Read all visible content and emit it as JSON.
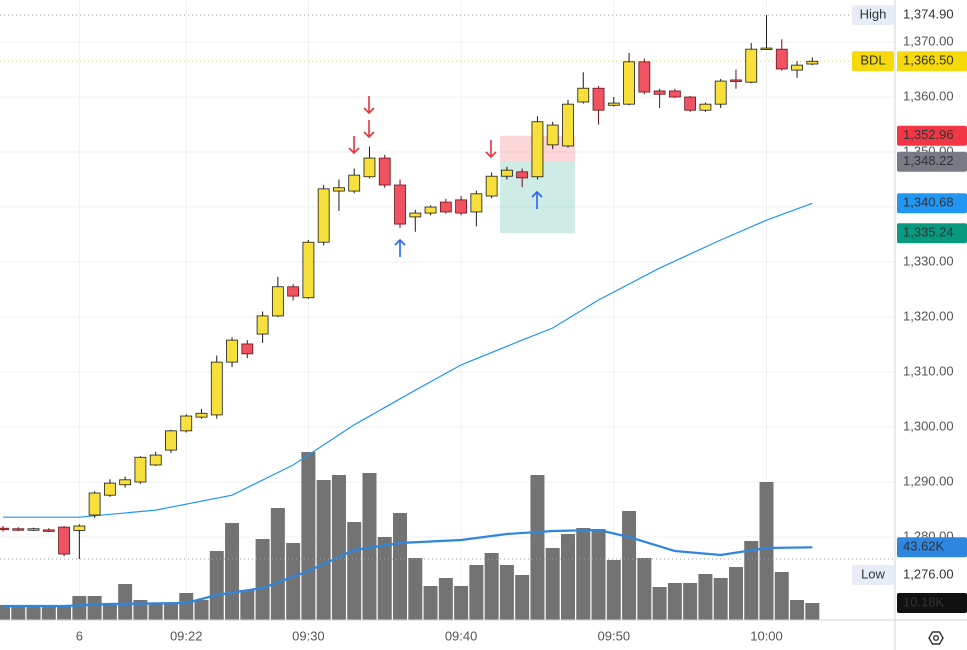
{
  "chart_data": {
    "type": "candlestick",
    "categories": [
      null,
      null,
      null,
      null,
      null,
      "6",
      null,
      null,
      null,
      null,
      null,
      null,
      "09:22",
      null,
      null,
      null,
      null,
      null,
      null,
      null,
      "09:30",
      null,
      null,
      null,
      null,
      null,
      null,
      null,
      null,
      null,
      "09:40",
      null,
      null,
      null,
      null,
      null,
      null,
      null,
      null,
      null,
      "09:50",
      null,
      null,
      null,
      null,
      null,
      null,
      null,
      null,
      null,
      "10:00",
      null,
      null,
      null
    ],
    "open": [
      1281.6,
      1281.5,
      1281.3,
      1281.3,
      1281.8,
      1281.2,
      1284.0,
      1287.6,
      1289.5,
      1290.0,
      1293.1,
      1295.8,
      1299.3,
      1301.8,
      1302.2,
      1311.8,
      1315.1,
      1316.9,
      1320.2,
      1325.5,
      1323.5,
      1333.6,
      1342.9,
      1342.9,
      1345.5,
      1348.9,
      1344.0,
      1338.2,
      1338.9,
      1340.9,
      1341.3,
      1339.1,
      1342.0,
      1345.6,
      1346.4,
      1345.5,
      1351.3,
      1351.1,
      1359.1,
      1361.6,
      1358.5,
      1358.7,
      1366.4,
      1361.1,
      1361.1,
      1360.0,
      1357.6,
      1358.7,
      1363.1,
      1362.7,
      1368.8,
      1368.7,
      1364.9,
      1366.0
    ],
    "high": [
      1282.0,
      1281.8,
      1281.7,
      1281.6,
      1282.0,
      1282.3,
      1288.3,
      1290.5,
      1291.0,
      1294.7,
      1295.5,
      1299.5,
      1302.3,
      1303.3,
      1313.0,
      1316.3,
      1315.8,
      1321.0,
      1327.3,
      1326.0,
      1334.0,
      1344.0,
      1345.0,
      1347.0,
      1351.0,
      1349.5,
      1345.0,
      1339.5,
      1340.3,
      1341.5,
      1342.0,
      1343.0,
      1346.3,
      1347.3,
      1347.0,
      1356.5,
      1355.5,
      1359.5,
      1364.5,
      1362.0,
      1360.0,
      1368.0,
      1367.0,
      1361.5,
      1361.5,
      1360.2,
      1359.0,
      1363.3,
      1365.0,
      1369.8,
      1374.9,
      1370.5,
      1366.5,
      1367.2
    ],
    "low": [
      1281.0,
      1281.1,
      1281.1,
      1280.9,
      1276.5,
      1276.0,
      1283.5,
      1287.3,
      1289.0,
      1289.7,
      1292.9,
      1295.3,
      1299.0,
      1301.5,
      1301.5,
      1310.9,
      1312.5,
      1315.3,
      1320.0,
      1323.0,
      1323.3,
      1333.0,
      1339.3,
      1342.5,
      1345.2,
      1343.5,
      1336.2,
      1335.5,
      1338.5,
      1338.8,
      1338.5,
      1336.5,
      1341.6,
      1345.0,
      1343.6,
      1345.0,
      1350.5,
      1350.8,
      1358.8,
      1355.0,
      1358.3,
      1358.5,
      1360.5,
      1358.0,
      1359.8,
      1357.3,
      1357.3,
      1358.0,
      1361.5,
      1362.5,
      1368.6,
      1364.8,
      1363.5,
      1365.8
    ],
    "close": [
      1281.4,
      1281.3,
      1281.5,
      1281.1,
      1276.9,
      1282.0,
      1288.0,
      1289.8,
      1290.4,
      1294.5,
      1294.9,
      1299.3,
      1302.0,
      1302.5,
      1311.8,
      1315.8,
      1313.3,
      1320.2,
      1325.5,
      1323.8,
      1333.6,
      1343.3,
      1343.5,
      1345.8,
      1348.9,
      1344.0,
      1336.9,
      1338.9,
      1340.0,
      1339.1,
      1338.9,
      1342.4,
      1345.6,
      1346.7,
      1345.3,
      1355.5,
      1354.9,
      1358.7,
      1361.6,
      1357.6,
      1358.9,
      1366.4,
      1360.9,
      1360.5,
      1360.0,
      1357.6,
      1358.7,
      1362.9,
      1363.0,
      1368.7,
      1368.9,
      1365.1,
      1365.8,
      1366.5
    ],
    "up_color": "#f7e03c",
    "down_color": "#ef5361",
    "ylim": [
      1264.91,
      1377.64
    ],
    "yticks": [
      {
        "value": 1280,
        "label": "1,280.00"
      },
      {
        "value": 1290,
        "label": "1,290.00"
      },
      {
        "value": 1300,
        "label": "1,300.00"
      },
      {
        "value": 1310,
        "label": "1,310.00"
      },
      {
        "value": 1320,
        "label": "1,320.00"
      },
      {
        "value": 1330,
        "label": "1,330.00"
      },
      {
        "value": 1340,
        "label": "1,340.00"
      },
      {
        "value": 1350,
        "label": "1,350.00"
      },
      {
        "value": 1360,
        "label": "1,360.00"
      },
      {
        "value": 1370,
        "label": "1,370.00"
      }
    ],
    "grid": true,
    "price_ma": {
      "color": "#2196f3",
      "x": [
        0,
        5,
        10,
        15,
        19,
        23,
        27,
        30,
        34,
        36,
        39,
        43,
        47,
        50,
        53
      ],
      "values": [
        1283.6,
        1283.6,
        1284.9,
        1287.6,
        1293.1,
        1300.4,
        1306.7,
        1311.3,
        1315.8,
        1318.0,
        1323.1,
        1328.9,
        1334.0,
        1337.6,
        1340.68
      ],
      "last_label": "1,340.68"
    },
    "volume": {
      "color": "#737373",
      "vlim": [
        0,
        372
      ],
      "values": [
        9.0,
        9.0,
        9.0,
        9.0,
        9.0,
        14.4,
        14.4,
        10.2,
        21.6,
        12.0,
        10.2,
        10.2,
        16.2,
        12.0,
        41.4,
        58.2,
        18.0,
        48.6,
        67.2,
        46.2,
        100.8,
        84.0,
        87.0,
        58.8,
        88.2,
        49.8,
        64.2,
        37.2,
        20.4,
        25.2,
        20.4,
        33.0,
        40.2,
        33.0,
        27.0,
        87.0,
        43.2,
        51.6,
        55.2,
        54.6,
        36.0,
        65.4,
        37.2,
        19.8,
        22.2,
        22.2,
        27.6,
        25.2,
        31.8,
        47.4,
        82.8,
        28.8,
        12.0,
        10.18
      ],
      "last_label": "10.18K"
    },
    "volume_ma": {
      "color": "#2e86de",
      "x": [
        0,
        4,
        7,
        12,
        14,
        17,
        20,
        23,
        26,
        30,
        33,
        36,
        39,
        41,
        44,
        47,
        50,
        53
      ],
      "values": [
        8.4,
        8.4,
        9.6,
        10.2,
        15.0,
        19.2,
        29.4,
        42.0,
        46.2,
        48.0,
        51.6,
        53.4,
        54.0,
        49.8,
        41.4,
        39.0,
        43.2,
        43.62
      ],
      "last_label": "43.62K"
    },
    "price_lines": [
      {
        "name": "High",
        "value": 1374.9,
        "value_label": "1,374.90",
        "color": "#9aa0aa"
      },
      {
        "name": "BDL",
        "value": 1366.5,
        "value_label": "1,366.50",
        "color": "#f5d90a"
      },
      {
        "name": "Low",
        "value": 1276.0,
        "value_label": "1,276.00",
        "color": "#9aa0aa"
      }
    ],
    "position": {
      "start": 33,
      "end": 37,
      "take_profit": 1352.96,
      "take_profit_label": "1,352.96",
      "entry": 1348.22,
      "entry_label": "1,348.22",
      "stop": 1335.24,
      "stop_label": "1,335.24"
    }
  }
}
